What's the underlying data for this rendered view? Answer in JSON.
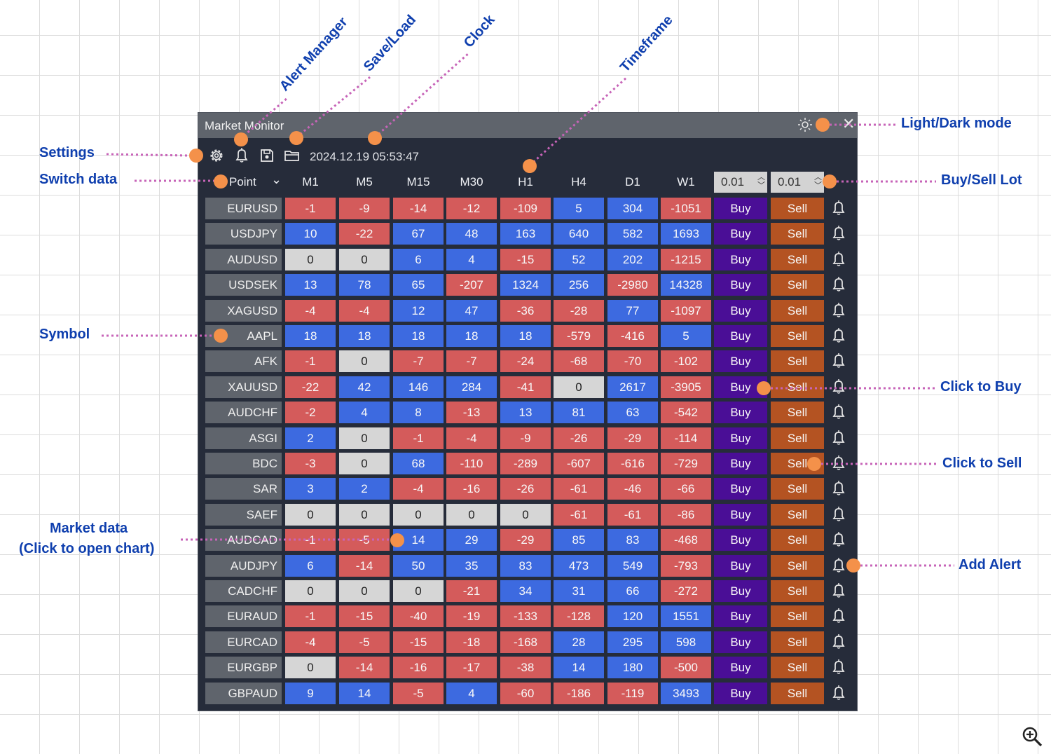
{
  "window": {
    "title": "Market Monitor",
    "clock": "2024.12.19 05:53:47",
    "switch_data": "Point",
    "close": "✕"
  },
  "timeframes": [
    "M1",
    "M5",
    "M15",
    "M30",
    "H1",
    "H4",
    "D1",
    "W1"
  ],
  "lots": {
    "buy": "0.01",
    "sell": "0.01"
  },
  "buttons": {
    "buy": "Buy",
    "sell": "Sell"
  },
  "rows": [
    {
      "symbol": "EURUSD",
      "values": [
        -1,
        -9,
        -14,
        -12,
        -109,
        5,
        304,
        -1051
      ]
    },
    {
      "symbol": "USDJPY",
      "values": [
        10,
        -22,
        67,
        48,
        163,
        640,
        582,
        1693
      ]
    },
    {
      "symbol": "AUDUSD",
      "values": [
        0,
        0,
        6,
        4,
        -15,
        52,
        202,
        -1215
      ]
    },
    {
      "symbol": "USDSEK",
      "values": [
        13,
        78,
        65,
        -207,
        1324,
        256,
        -2980,
        14328
      ]
    },
    {
      "symbol": "XAGUSD",
      "values": [
        -4,
        -4,
        12,
        47,
        -36,
        -28,
        77,
        -1097
      ]
    },
    {
      "symbol": "AAPL",
      "values": [
        18,
        18,
        18,
        18,
        18,
        -579,
        -416,
        5
      ]
    },
    {
      "symbol": "AFK",
      "values": [
        -1,
        0,
        -7,
        -7,
        -24,
        -68,
        -70,
        -102
      ]
    },
    {
      "symbol": "XAUUSD",
      "values": [
        -22,
        42,
        146,
        284,
        -41,
        0,
        2617,
        -3905
      ]
    },
    {
      "symbol": "AUDCHF",
      "values": [
        -2,
        4,
        8,
        -13,
        13,
        81,
        63,
        -542
      ]
    },
    {
      "symbol": "ASGI",
      "values": [
        2,
        0,
        -1,
        -4,
        -9,
        -26,
        -29,
        -114
      ]
    },
    {
      "symbol": "BDC",
      "values": [
        -3,
        0,
        68,
        -110,
        -289,
        -607,
        -616,
        -729
      ]
    },
    {
      "symbol": "SAR",
      "values": [
        3,
        2,
        -4,
        -16,
        -26,
        -61,
        -46,
        -66
      ]
    },
    {
      "symbol": "SAEF",
      "values": [
        0,
        0,
        0,
        0,
        0,
        -61,
        -61,
        -86
      ]
    },
    {
      "symbol": "AUDCAD",
      "values": [
        -1,
        -5,
        14,
        29,
        -29,
        85,
        83,
        -468
      ]
    },
    {
      "symbol": "AUDJPY",
      "values": [
        6,
        -14,
        50,
        35,
        83,
        473,
        549,
        -793
      ]
    },
    {
      "symbol": "CADCHF",
      "values": [
        0,
        0,
        0,
        -21,
        34,
        31,
        66,
        -272
      ]
    },
    {
      "symbol": "EURAUD",
      "values": [
        -1,
        -15,
        -40,
        -19,
        -133,
        -128,
        120,
        1551
      ]
    },
    {
      "symbol": "EURCAD",
      "values": [
        -4,
        -5,
        -15,
        -18,
        -168,
        28,
        295,
        598
      ]
    },
    {
      "symbol": "EURGBP",
      "values": [
        0,
        -14,
        -16,
        -17,
        -38,
        14,
        180,
        -500
      ]
    },
    {
      "symbol": "GBPAUD",
      "values": [
        9,
        14,
        -5,
        4,
        -60,
        -186,
        -119,
        3493
      ]
    }
  ],
  "annotations": {
    "settings": "Settings",
    "switch_data": "Switch data",
    "symbol": "Symbol",
    "market_data_1": "Market data",
    "market_data_2": "(Click to open chart)",
    "alert_manager": "Alert Manager",
    "save_load": "Save/Load",
    "clock": "Clock",
    "timeframe": "Timeframe",
    "light_dark": "Light/Dark mode",
    "buy_sell_lot": "Buy/Sell Lot",
    "click_to_buy": "Click to Buy",
    "click_to_sell": "Click to Sell",
    "add_alert": "Add Alert"
  },
  "colors": {
    "positive": "#3d6ae0",
    "negative": "#d45b5b",
    "zero": "#d6d6d6",
    "buy": "#4a0e96",
    "sell": "#b45322",
    "annotation": "#0f3fae",
    "annotation_dot": "#f4914a",
    "leader_line": "#c764b8"
  }
}
